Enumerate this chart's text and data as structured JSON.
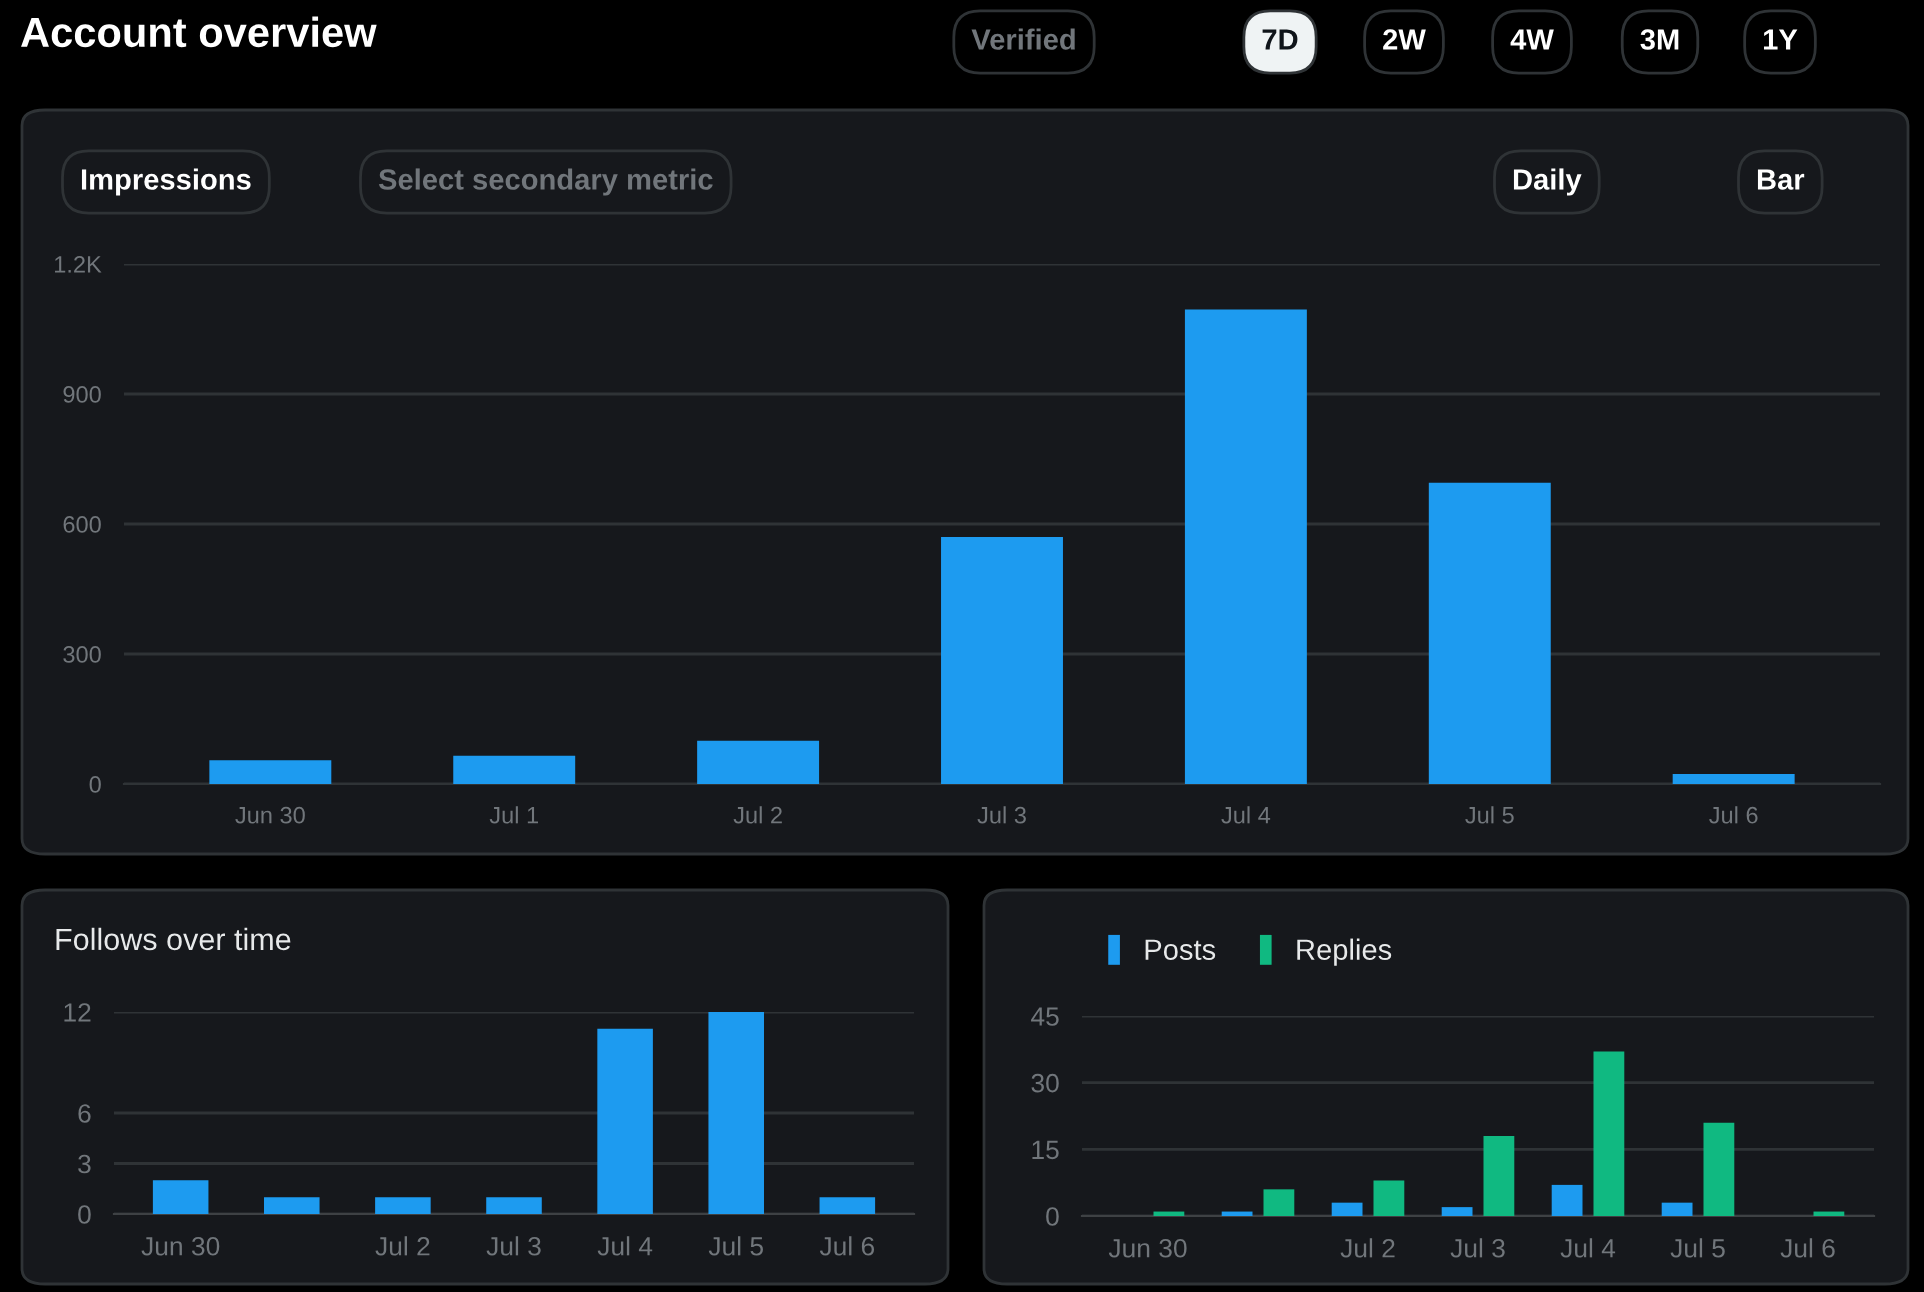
{
  "chart_data": [
    {
      "type": "other",
      "title": "Account overview",
      "annotations": [
        "Verified",
        "7D",
        "2W",
        "4W",
        "3M",
        "1Y"
      ]
    },
    {
      "type": "bar",
      "annotations": [
        "Impressions",
        "Select secondary metric",
        "Daily",
        "Bar"
      ],
      "categories": [
        "Jun 30",
        "Jul 1",
        "Jul 2",
        "Jul 3",
        "Jul 4",
        "Jul 5",
        "Jul 6"
      ],
      "values": [
        55,
        65,
        100,
        570,
        1095,
        695,
        23
      ],
      "color": "#1d9bf0",
      "ylim": [
        0,
        1200
      ],
      "yticks": [
        0,
        300,
        600,
        900,
        {
          "value": 1200,
          "label": "1.2K"
        }
      ],
      "grid": "y"
    },
    {
      "type": "bar",
      "title": "Follows over time",
      "categories": [
        "Jun 30",
        null,
        "Jul 2",
        "Jul 3",
        "Jul 4",
        "Jul 5",
        "Jul 6"
      ],
      "values": [
        2,
        1,
        1,
        1,
        11,
        12,
        1
      ],
      "color": "#1d9bf0",
      "ylim": [
        0,
        12
      ],
      "yticks": [
        0,
        3,
        6,
        12
      ],
      "grid": "y"
    },
    {
      "type": "bar",
      "categories": [
        "Jun 30",
        null,
        "Jul 2",
        "Jul 3",
        "Jul 4",
        "Jul 5",
        "Jul 6"
      ],
      "series": [
        {
          "name": "Posts",
          "color": "#1d9bf0",
          "values": [
            0,
            1,
            3,
            2,
            7,
            3,
            0
          ]
        },
        {
          "name": "Replies",
          "color": "#10b981",
          "values": [
            1,
            6,
            8,
            18,
            37,
            21,
            1
          ]
        }
      ],
      "ylim": [
        0,
        45
      ],
      "yticks": [
        0,
        15,
        30,
        45
      ],
      "grid": "y",
      "legend": "top left"
    }
  ]
}
